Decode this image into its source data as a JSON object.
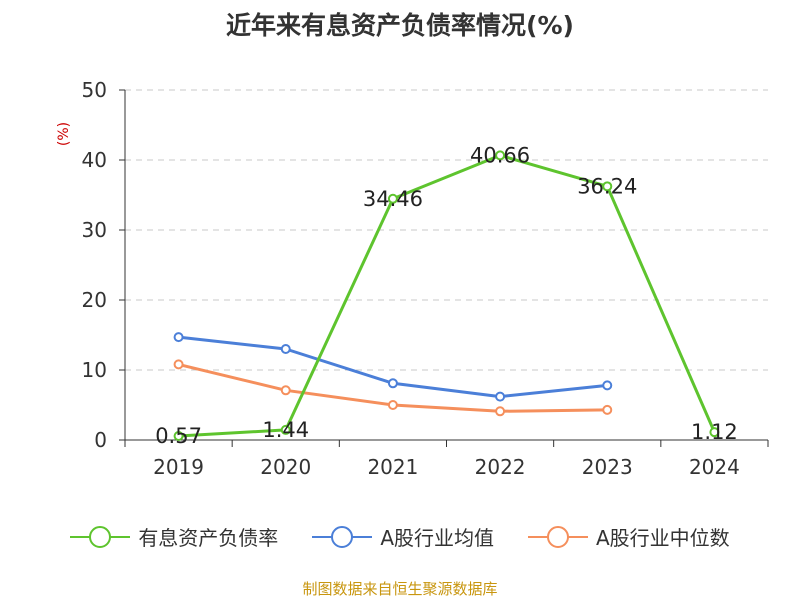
{
  "colors": {
    "series1": "#5ec42e",
    "series2": "#4b7fd8",
    "series3": "#f58f5c",
    "grid": "#c8c8c8",
    "axis": "#333333",
    "ylabel": "#cc0000",
    "source": "#c8960f"
  },
  "chart_data": {
    "type": "line",
    "title": "近年来有息资产负债率情况(%)",
    "xlabel": "",
    "ylabel": "(%)",
    "categories": [
      "2019",
      "2020",
      "2021",
      "2022",
      "2023",
      "2024"
    ],
    "ylim": [
      0,
      50
    ],
    "yticks": [
      "0",
      "10",
      "20",
      "30",
      "40",
      "50"
    ],
    "grid": true,
    "legend_position": "bottom",
    "series": [
      {
        "name": "有息资产负债率",
        "values": [
          0.57,
          1.44,
          34.46,
          40.66,
          36.24,
          1.12
        ],
        "labels": [
          "0.57",
          "1.44",
          "34.46",
          "40.66",
          "36.24",
          "1.12"
        ],
        "color": "#5ec42e"
      },
      {
        "name": "A股行业均值",
        "values": [
          14.7,
          13.0,
          8.1,
          6.2,
          7.8,
          null
        ],
        "color": "#4b7fd8"
      },
      {
        "name": "A股行业中位数",
        "values": [
          10.8,
          7.1,
          5.0,
          4.1,
          4.3,
          null
        ],
        "color": "#f58f5c"
      }
    ]
  },
  "source": "制图数据来自恒生聚源数据库"
}
